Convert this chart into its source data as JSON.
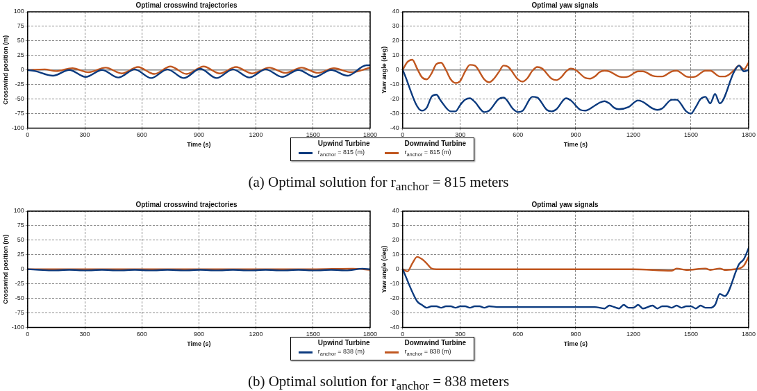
{
  "chart_data": [
    {
      "type": "line",
      "title": "Optimal crosswind trajectories",
      "xlabel": "Time (s)",
      "ylabel": "Crosswind position (m)",
      "xlim": [
        0,
        1800
      ],
      "xticks": [
        0,
        300,
        600,
        900,
        1200,
        1500,
        1800
      ],
      "ylim": [
        -100,
        100
      ],
      "yticks": [
        -100,
        -75,
        -50,
        -25,
        0,
        25,
        50,
        75,
        100
      ],
      "grid": true,
      "legend": "bottom",
      "line_style": "solid",
      "marker": "none",
      "ref_lines": [
        {
          "axis": "y",
          "value": 0,
          "color": "#808080"
        }
      ],
      "annotations": [
        "Upwind Turbine",
        "Downwind Turbine",
        "(a) Optimal solution for r$_{anchor}$ = 815 meters"
      ],
      "series": [
        {
          "name": "r$_{anchor}$ = 815 (m)",
          "color": "#0b3a7e",
          "x": [
            0,
            40,
            133,
            219,
            305,
            391,
            477,
            563,
            649,
            735,
            821,
            907,
            993,
            1079,
            1165,
            1251,
            1337,
            1423,
            1509,
            1595,
            1681,
            1780,
            1800
          ],
          "values": [
            0,
            -2,
            -10,
            0,
            -12,
            0,
            -13,
            1,
            -14,
            1,
            -14,
            2,
            -14,
            1,
            -13,
            1,
            -12,
            0,
            -12,
            0,
            -10,
            8,
            8
          ]
        },
        {
          "name": "r$_{anchor}$ = 815 (m)",
          "color": "#c0561f",
          "x": [
            0,
            90,
            150,
            235,
            320,
            410,
            495,
            580,
            665,
            750,
            835,
            925,
            1010,
            1095,
            1180,
            1270,
            1355,
            1440,
            1525,
            1610,
            1700,
            1800
          ],
          "values": [
            0,
            1,
            -2,
            3,
            -4,
            4,
            -6,
            5,
            -7,
            6,
            -7,
            6,
            -6,
            5,
            -6,
            4,
            -5,
            4,
            -5,
            3,
            -4,
            4
          ]
        }
      ]
    },
    {
      "type": "line",
      "title": "Optimal yaw signals",
      "xlabel": "Time (s)",
      "ylabel": "Yaw angle (deg)",
      "xlim": [
        0,
        1800
      ],
      "xticks": [
        0,
        300,
        600,
        900,
        1200,
        1500,
        1800
      ],
      "ylim": [
        -40,
        40
      ],
      "yticks": [
        -40,
        -30,
        -20,
        -10,
        0,
        10,
        20,
        30,
        40
      ],
      "grid": true,
      "line_style": "solid",
      "marker": "none",
      "ref_lines": [
        {
          "axis": "y",
          "value": 0,
          "color": "#808080"
        }
      ],
      "series": [
        {
          "color": "#0b3a7e",
          "x": [
            0,
            100,
            125,
            150,
            175,
            200,
            250,
            275,
            300,
            325,
            350,
            375,
            425,
            450,
            500,
            525,
            575,
            600,
            625,
            675,
            700,
            750,
            775,
            800,
            850,
            875,
            925,
            950,
            1000,
            1025,
            1050,
            1075,
            1100,
            1125,
            1175,
            1225,
            1250,
            1300,
            1325,
            1350,
            1400,
            1425,
            1475,
            1500,
            1525,
            1550,
            1575,
            1600,
            1625,
            1650,
            1725,
            1750,
            1775,
            1800
          ],
          "values": [
            0,
            -28,
            -26,
            -18.5,
            -17,
            -21.5,
            -28.5,
            -28.5,
            -24,
            -20.5,
            -19.5,
            -22,
            -29,
            -28,
            -20,
            -19,
            -27,
            -29,
            -28,
            -18.5,
            -19,
            -27.5,
            -28.5,
            -27,
            -19.5,
            -21,
            -27.5,
            -28,
            -24.5,
            -22.5,
            -21.5,
            -23,
            -26,
            -27,
            -25.5,
            -21,
            -22,
            -26.5,
            -27.5,
            -26.5,
            -20.5,
            -20.5,
            -28.5,
            -30,
            -25.5,
            -20,
            -18.5,
            -23,
            -16.5,
            -23,
            -1,
            3,
            -1,
            0
          ]
        },
        {
          "color": "#c0561f",
          "x": [
            0,
            25,
            50,
            75,
            100,
            125,
            150,
            175,
            200,
            225,
            250,
            275,
            300,
            325,
            350,
            375,
            425,
            450,
            475,
            500,
            525,
            550,
            600,
            625,
            650,
            675,
            700,
            725,
            775,
            800,
            825,
            850,
            875,
            900,
            950,
            975,
            1000,
            1025,
            1050,
            1075,
            1125,
            1150,
            1175,
            1225,
            1250,
            1300,
            1325,
            1350,
            1400,
            1425,
            1475,
            1500,
            1525,
            1575,
            1600,
            1650,
            1675,
            1700,
            1725,
            1750,
            1775,
            1800
          ],
          "values": [
            0,
            5.5,
            7,
            1,
            -5,
            -6.5,
            -2.5,
            4,
            5,
            0,
            -6.5,
            -9,
            -7.5,
            -1,
            3.5,
            3,
            -6.5,
            -8.5,
            -6,
            -1.5,
            3,
            2,
            -6.5,
            -8,
            -5.5,
            -0.5,
            2,
            1,
            -6,
            -7,
            -5,
            -1,
            1,
            0,
            -5.5,
            -6,
            -4.5,
            -1.5,
            -0.5,
            -1,
            -4.5,
            -5,
            -4.5,
            -1,
            -1,
            -4,
            -4.5,
            -4.5,
            -1,
            -0.5,
            -4.5,
            -5,
            -4.5,
            -0.5,
            -0.5,
            -4.5,
            -4.5,
            -3,
            0,
            3,
            0.5,
            5
          ]
        }
      ]
    },
    {
      "type": "line",
      "title": "Optimal crosswind trajectories",
      "xlabel": "Time (s)",
      "ylabel": "Crosswind position (m)",
      "xlim": [
        0,
        1800
      ],
      "xticks": [
        0,
        300,
        600,
        900,
        1200,
        1500,
        1800
      ],
      "ylim": [
        -100,
        100
      ],
      "yticks": [
        -100,
        -75,
        -50,
        -25,
        0,
        25,
        50,
        75,
        100
      ],
      "grid": true,
      "legend": "bottom",
      "line_style": "solid",
      "marker": "none",
      "annotations": [
        "Upwind Turbine",
        "Downwind Turbine",
        "(b) Optimal solution for r$_{anchor}$ = 838 meters"
      ],
      "series": [
        {
          "name": "r$_{anchor}$ = 838 (m)",
          "color": "#0b3a7e",
          "x": [
            0,
            60,
            133,
            219,
            305,
            391,
            477,
            563,
            649,
            735,
            821,
            907,
            993,
            1079,
            1165,
            1251,
            1337,
            1423,
            1509,
            1595,
            1681,
            1760,
            1800
          ],
          "values": [
            0,
            -1,
            -2,
            -1,
            -2,
            -1,
            -2,
            -1,
            -2,
            -1,
            -2,
            -1,
            -2,
            -1,
            -2,
            -1,
            -2,
            -1,
            -2,
            -1,
            -2,
            1,
            0
          ]
        },
        {
          "name": "r$_{anchor}$ = 838 (m)",
          "color": "#c0561f",
          "x": [
            0,
            300,
            600,
            900,
            1200,
            1500,
            1700,
            1800
          ],
          "values": [
            0,
            0,
            0,
            0,
            0,
            0,
            1,
            -1
          ]
        }
      ]
    },
    {
      "type": "line",
      "title": "Optimal yaw signals",
      "xlabel": "Time (s)",
      "ylabel": "Yaw angle (deg)",
      "xlim": [
        0,
        1800
      ],
      "xticks": [
        0,
        300,
        600,
        900,
        1200,
        1500,
        1800
      ],
      "ylim": [
        -40,
        40
      ],
      "yticks": [
        -40,
        -30,
        -20,
        -10,
        0,
        10,
        20,
        30,
        40
      ],
      "grid": true,
      "line_style": "solid",
      "marker": "none",
      "ref_lines": [
        {
          "axis": "y",
          "value": 0,
          "color": "#808080"
        }
      ],
      "series": [
        {
          "color": "#0b3a7e",
          "x": [
            0,
            75,
            100,
            125,
            150,
            175,
            200,
            225,
            250,
            275,
            300,
            325,
            350,
            375,
            400,
            425,
            450,
            500,
            600,
            700,
            800,
            900,
            1000,
            1050,
            1075,
            1100,
            1125,
            1150,
            1175,
            1200,
            1225,
            1250,
            1300,
            1325,
            1350,
            1375,
            1400,
            1425,
            1450,
            1475,
            1500,
            1525,
            1550,
            1575,
            1600,
            1625,
            1650,
            1675,
            1750,
            1775,
            1800
          ],
          "values": [
            0,
            -22,
            -24.5,
            -26.5,
            -25.5,
            -25.5,
            -26.5,
            -25.5,
            -25.5,
            -26.5,
            -25.5,
            -25.5,
            -26.5,
            -25.5,
            -25.5,
            -26.5,
            -25.5,
            -26,
            -26,
            -26,
            -26,
            -26,
            -26,
            -27,
            -25,
            -26,
            -27,
            -24.5,
            -26.5,
            -26.5,
            -24.5,
            -27,
            -25,
            -27,
            -25.5,
            -25.5,
            -26.5,
            -25,
            -26.5,
            -25.5,
            -25.5,
            -27,
            -25,
            -26.5,
            -26.5,
            -24.5,
            -17,
            -18.5,
            3.5,
            7,
            14.5
          ]
        },
        {
          "color": "#c0561f",
          "x": [
            0,
            25,
            50,
            75,
            100,
            125,
            150,
            175,
            300,
            600,
            900,
            1200,
            1400,
            1425,
            1475,
            1575,
            1600,
            1650,
            1675,
            1725,
            1750,
            1775,
            1800
          ],
          "values": [
            0,
            -1.5,
            4,
            8.5,
            7,
            4,
            0.5,
            0,
            0,
            0,
            0,
            0,
            -1,
            0.5,
            -0.5,
            0.5,
            -0.5,
            0.5,
            -0.5,
            0,
            0.5,
            2.5,
            8.5
          ]
        }
      ]
    }
  ]
}
